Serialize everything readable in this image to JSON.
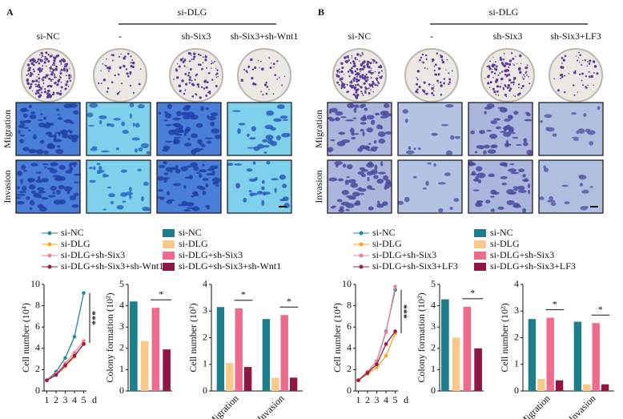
{
  "panels": [
    {
      "label": "A",
      "group_label": "si-DLG",
      "columns": [
        "si-NC",
        "-",
        "sh-Six3",
        "sh-Six3+sh-Wnt1"
      ],
      "row_labels": [
        "Migration",
        "Invasion"
      ]
    },
    {
      "label": "B",
      "group_label": "si-DLG",
      "columns": [
        "si-NC",
        "-",
        "sh-Six3",
        "sh-Six3+LF3"
      ],
      "row_labels": [
        "Migration",
        "Invasion"
      ]
    }
  ],
  "chart_data": [
    {
      "type": "line",
      "ylabel": "Cell number (10⁴)",
      "xlabel": "d",
      "x": [
        1,
        2,
        3,
        4,
        5
      ],
      "xlim": [
        0.7,
        5.3
      ],
      "xticks": [
        1,
        2,
        3,
        4,
        5
      ],
      "ylim": [
        0,
        10
      ],
      "yticks": [
        0,
        2,
        4,
        6,
        8,
        10
      ],
      "annotation": "***",
      "series": [
        {
          "name": "si-NC",
          "color": "#1f8a9c",
          "values": [
            1,
            1.8,
            3.1,
            5.1,
            9.2
          ]
        },
        {
          "name": "si-DLG",
          "color": "#f5a623",
          "values": [
            1,
            1.5,
            2.3,
            3.2,
            4.5
          ]
        },
        {
          "name": "si-DLG+sh-Six3",
          "color": "#f07f9c",
          "values": [
            1,
            1.6,
            2.6,
            3.6,
            4.7
          ]
        },
        {
          "name": "si-DLG+sh-Six3+sh-Wnt1",
          "color": "#9b1b4a",
          "values": [
            1,
            1.5,
            2.4,
            3.3,
            4.4
          ]
        }
      ]
    },
    {
      "type": "bar",
      "ylabel": "Colony formation (10²)",
      "categories": [
        null,
        null,
        null,
        null
      ],
      "values": [
        4.2,
        2.35,
        3.9,
        1.95
      ],
      "colors": [
        "#1d7f8c",
        "#f9c98a",
        "#ee6b8d",
        "#8f1545"
      ],
      "ylim": [
        0,
        5
      ],
      "yticks": [
        0,
        1,
        2,
        3,
        4,
        5
      ],
      "annotation": "*"
    },
    {
      "type": "grouped_bar",
      "ylabel": "Cell number (10²)",
      "categories": [
        "Migration",
        "Invasion"
      ],
      "ylim": [
        0,
        4
      ],
      "yticks": [
        0,
        1,
        2,
        3,
        4
      ],
      "annotations": [
        "*",
        "*"
      ],
      "series": [
        {
          "name": "si-NC",
          "color": "#1d7f8c",
          "values": [
            3.15,
            2.7
          ]
        },
        {
          "name": "si-DLG",
          "color": "#f9c98a",
          "values": [
            1.05,
            0.5
          ]
        },
        {
          "name": "si-DLG+sh-Six3",
          "color": "#ee6b8d",
          "values": [
            3.1,
            2.85
          ]
        },
        {
          "name": "si-DLG+sh-Six3+sh-Wnt1",
          "color": "#8f1545",
          "values": [
            0.9,
            0.5
          ]
        }
      ]
    },
    {
      "type": "line",
      "ylabel": "Cell number (10⁴)",
      "xlabel": "d",
      "x": [
        1,
        2,
        3,
        4,
        5
      ],
      "xlim": [
        0.7,
        5.3
      ],
      "xticks": [
        1,
        2,
        3,
        4,
        5
      ],
      "ylim": [
        0,
        10
      ],
      "yticks": [
        0,
        2,
        4,
        6,
        8,
        10
      ],
      "annotation": "***",
      "series": [
        {
          "name": "si-NC",
          "color": "#1f8a9c",
          "values": [
            1,
            1.8,
            2.8,
            5.6,
            9.5
          ]
        },
        {
          "name": "si-DLG",
          "color": "#f5a623",
          "values": [
            1,
            1.6,
            2.2,
            3.3,
            5.4
          ]
        },
        {
          "name": "si-DLG+sh-Six3",
          "color": "#f07f9c",
          "values": [
            1,
            1.8,
            2.8,
            5.5,
            9.8
          ]
        },
        {
          "name": "si-DLG+sh-Six3+LF3",
          "color": "#9b1b4a",
          "values": [
            1,
            1.7,
            2.5,
            4.4,
            5.6
          ]
        }
      ]
    },
    {
      "type": "bar",
      "ylabel": "Colony formation (10²)",
      "categories": [
        null,
        null,
        null,
        null
      ],
      "values": [
        4.3,
        2.5,
        3.95,
        2.0
      ],
      "colors": [
        "#1d7f8c",
        "#f9c98a",
        "#ee6b8d",
        "#8f1545"
      ],
      "ylim": [
        0,
        5
      ],
      "yticks": [
        0,
        1,
        2,
        3,
        4,
        5
      ],
      "annotation": "*"
    },
    {
      "type": "grouped_bar",
      "ylabel": "Cell number (10²)",
      "categories": [
        "Migration",
        "Invasion"
      ],
      "ylim": [
        0,
        4
      ],
      "yticks": [
        0,
        1,
        2,
        3,
        4
      ],
      "annotations": [
        "*",
        "*"
      ],
      "series": [
        {
          "name": "si-NC",
          "color": "#1d7f8c",
          "values": [
            2.7,
            2.6
          ]
        },
        {
          "name": "si-DLG",
          "color": "#f9c98a",
          "values": [
            0.45,
            0.25
          ]
        },
        {
          "name": "si-DLG+sh-Six3",
          "color": "#ee6b8d",
          "values": [
            2.75,
            2.55
          ]
        },
        {
          "name": "si-DLG+sh-Six3+LF3",
          "color": "#8f1545",
          "values": [
            0.4,
            0.25
          ]
        }
      ]
    }
  ]
}
